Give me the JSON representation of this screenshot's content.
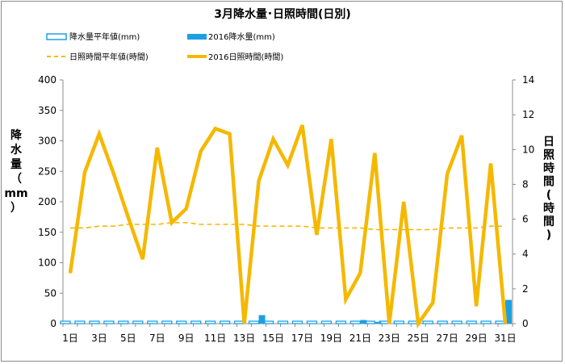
{
  "chart_data": {
    "type": "bar+line",
    "title": "3月降水量･日照時間(日別)",
    "categories": [
      "1",
      "2",
      "3",
      "4",
      "5",
      "6",
      "7",
      "8",
      "9",
      "10",
      "11",
      "12",
      "13",
      "14",
      "15",
      "16",
      "17",
      "18",
      "19",
      "20",
      "21",
      "22",
      "23",
      "24",
      "25",
      "26",
      "27",
      "28",
      "29",
      "30",
      "31"
    ],
    "x_tick_labels": [
      "1日",
      "3日",
      "5日",
      "7日",
      "9日",
      "11日",
      "13日",
      "15日",
      "17日",
      "19日",
      "21日",
      "23日",
      "25日",
      "27日",
      "29日",
      "31日"
    ],
    "y_left": {
      "label": "降水量(mm)",
      "label_chars": [
        "降",
        "水",
        "量",
        "（",
        "mm",
        "）"
      ],
      "lim": [
        0,
        400
      ],
      "ticks": [
        "0",
        "50",
        "100",
        "150",
        "200",
        "250",
        "300",
        "350",
        "400"
      ]
    },
    "y_right": {
      "label": "日照時間(時間)",
      "label_chars": [
        "日",
        "照",
        "時",
        "間",
        "(",
        "時",
        "間",
        ")"
      ],
      "lim": [
        0,
        14
      ],
      "ticks": [
        "0",
        "2",
        "4",
        "6",
        "8",
        "10",
        "12",
        "14"
      ]
    },
    "legend": {
      "precip_normal": "降水量平年値(mm)",
      "precip_2016": "2016降水量(mm)",
      "sun_normal": "日照時間平年値(時間)",
      "sun_2016": "2016日照時間(時間)"
    },
    "series": [
      {
        "name": "降水量平年値(mm)",
        "axis": "left",
        "kind": "bar-outline",
        "values": [
          4,
          4,
          4,
          4,
          4,
          4,
          4,
          4,
          4,
          4,
          4,
          4,
          4,
          4,
          4,
          4,
          4,
          4,
          4,
          4,
          4,
          4,
          4,
          4,
          4,
          4,
          4,
          4,
          4,
          4,
          4
        ]
      },
      {
        "name": "2016降水量(mm)",
        "axis": "left",
        "kind": "bar",
        "values": [
          0,
          0,
          0,
          0,
          0,
          0,
          0,
          0,
          0,
          0,
          0,
          0,
          0,
          14,
          0,
          0,
          0,
          0,
          0,
          0,
          6,
          3,
          0,
          0,
          0,
          0,
          0,
          0,
          0,
          0,
          39
        ]
      },
      {
        "name": "日照時間平年値(時間)",
        "axis": "right",
        "kind": "dashed-line",
        "values": [
          5.5,
          5.5,
          5.6,
          5.6,
          5.7,
          5.7,
          5.7,
          5.8,
          5.8,
          5.7,
          5.7,
          5.7,
          5.7,
          5.6,
          5.6,
          5.6,
          5.6,
          5.5,
          5.5,
          5.5,
          5.5,
          5.4,
          5.4,
          5.4,
          5.4,
          5.4,
          5.5,
          5.5,
          5.5,
          5.6,
          5.6
        ]
      },
      {
        "name": "2016日照時間(時間)",
        "axis": "right",
        "kind": "line",
        "values": [
          2.9,
          8.7,
          10.9,
          8.6,
          6.1,
          3.7,
          10.1,
          5.8,
          6.6,
          9.9,
          11.2,
          10.9,
          0,
          8.2,
          10.6,
          9.1,
          11.4,
          5.1,
          10.6,
          1.4,
          2.9,
          9.8,
          0,
          7.0,
          0,
          1.2,
          8.6,
          10.8,
          1.0,
          9.2,
          0
        ]
      }
    ],
    "colors": {
      "precip": "#1da0e3",
      "sunshine": "#f5b800",
      "axis": "#8c8c8c"
    },
    "grid": false,
    "legend_position": "top"
  }
}
